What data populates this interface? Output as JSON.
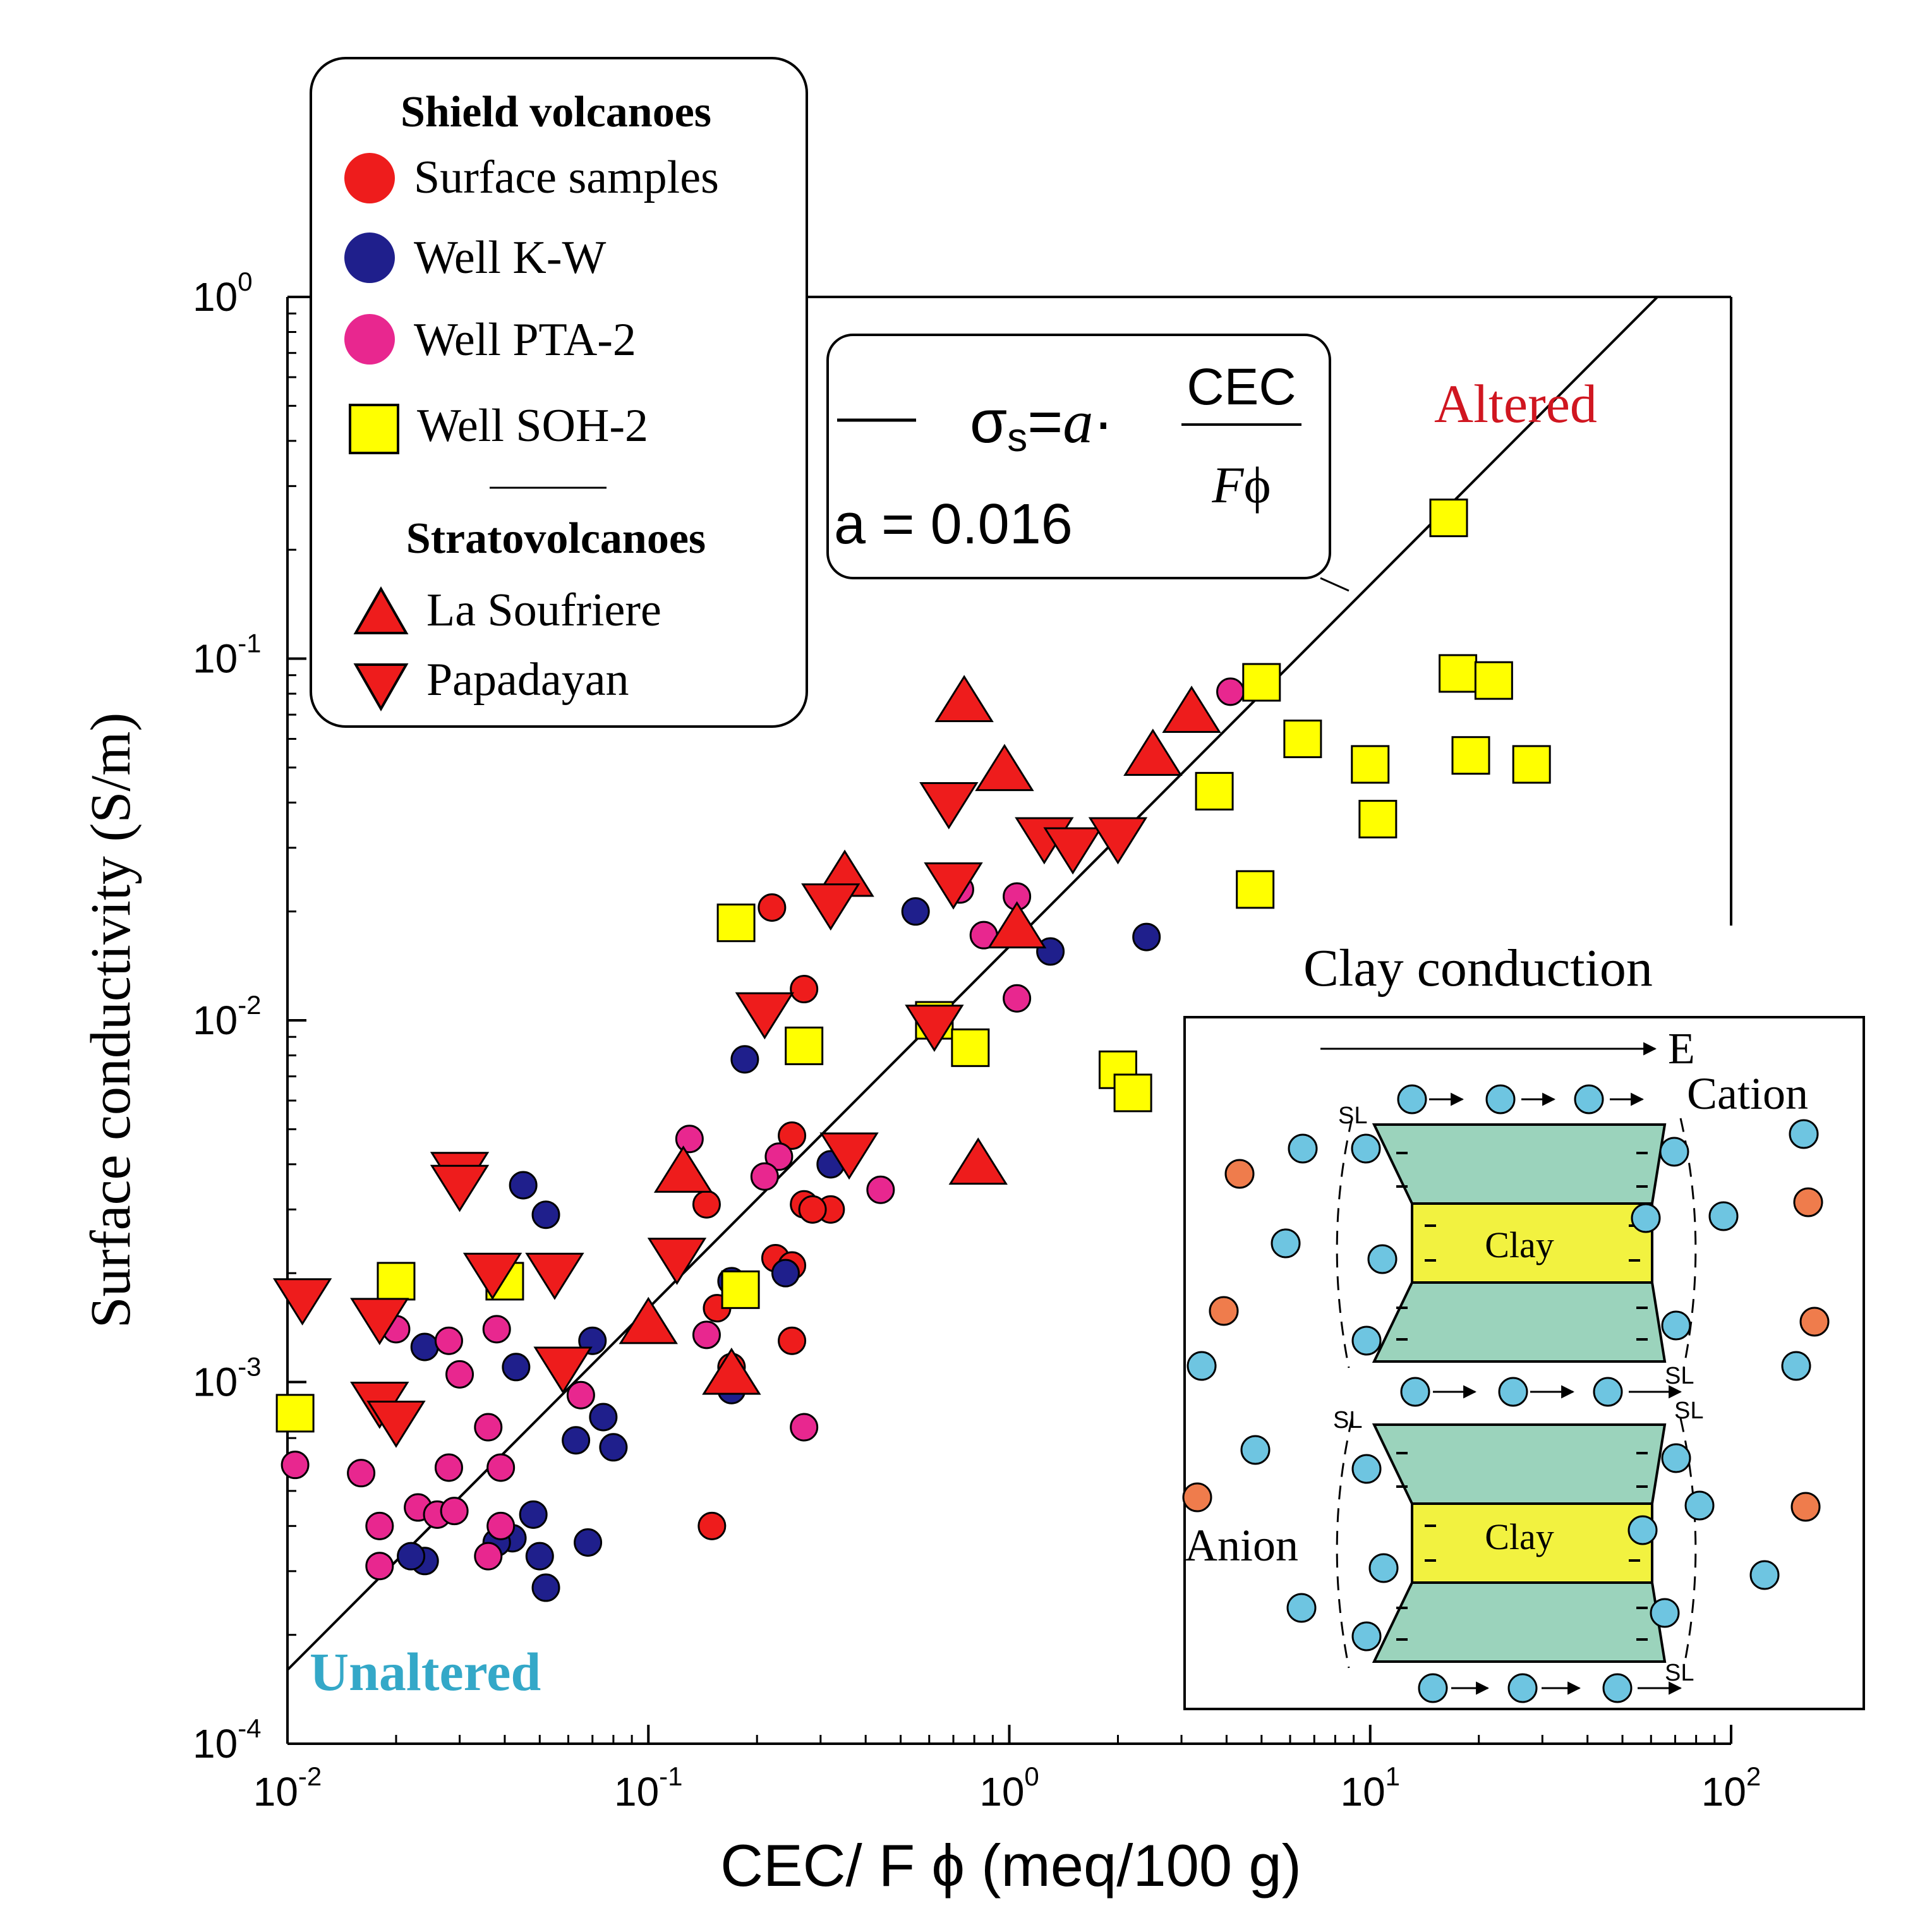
{
  "chart_data": {
    "type": "scatter",
    "title": "",
    "xlabel": "CEC/ F ϕ (meq/100 g)",
    "ylabel": "Surface conductivity (S/m)",
    "x_scale": "log",
    "y_scale": "log",
    "xlim": [
      0.01,
      100
    ],
    "ylim": [
      0.0001,
      1
    ],
    "x_ticks": [
      {
        "value": 0.01,
        "base": "10",
        "exp": "-2"
      },
      {
        "value": 0.1,
        "base": "10",
        "exp": "-1"
      },
      {
        "value": 1,
        "base": "10",
        "exp": "0"
      },
      {
        "value": 10,
        "base": "10",
        "exp": "1"
      },
      {
        "value": 100,
        "base": "10",
        "exp": "2"
      }
    ],
    "y_ticks": [
      {
        "value": 0.0001,
        "base": "10",
        "exp": "-4"
      },
      {
        "value": 0.001,
        "base": "10",
        "exp": "-3"
      },
      {
        "value": 0.01,
        "base": "10",
        "exp": "-2"
      },
      {
        "value": 0.1,
        "base": "10",
        "exp": "-1"
      },
      {
        "value": 1,
        "base": "10",
        "exp": "0"
      }
    ],
    "fit": {
      "a": 0.016,
      "equation": "σs = a · CEC / Fϕ",
      "a_label": "a = 0.016"
    },
    "legend": {
      "position": "top-left",
      "group1_title": "Shield volcanoes",
      "group2_title": "Stratovolcanoes"
    },
    "annotations": {
      "altered": "Altered",
      "unaltered": "Unaltered"
    },
    "series": [
      {
        "name": "Surface samples",
        "marker": "circle",
        "color": "#ee1c1c",
        "points": [
          [
            0.22,
            0.0205
          ],
          [
            0.27,
            0.0122
          ],
          [
            0.25,
            0.0048
          ],
          [
            0.225,
            0.0022
          ],
          [
            0.27,
            0.0031
          ],
          [
            0.25,
            0.0021
          ],
          [
            0.145,
            0.0031
          ],
          [
            0.155,
            0.0016
          ],
          [
            0.17,
            0.0011
          ],
          [
            0.25,
            0.0013
          ],
          [
            0.15,
            0.0004
          ],
          [
            0.32,
            0.003
          ],
          [
            0.285,
            0.003
          ]
        ]
      },
      {
        "name": "Well K-W",
        "marker": "circle",
        "color": "#1f1f8c",
        "points": [
          [
            0.55,
            0.02
          ],
          [
            1.3,
            0.0155
          ],
          [
            2.4,
            0.017
          ],
          [
            0.32,
            0.004
          ],
          [
            0.185,
            0.0078
          ],
          [
            0.17,
            0.0019
          ],
          [
            0.045,
            0.0035
          ],
          [
            0.052,
            0.0029
          ],
          [
            0.024,
            0.00125
          ],
          [
            0.043,
            0.0011
          ],
          [
            0.07,
            0.0013
          ],
          [
            0.075,
            0.0008
          ],
          [
            0.08,
            0.00066
          ],
          [
            0.063,
            0.00069
          ],
          [
            0.048,
            0.00043
          ],
          [
            0.042,
            0.00037
          ],
          [
            0.05,
            0.00033
          ],
          [
            0.052,
            0.00027
          ],
          [
            0.038,
            0.00036
          ],
          [
            0.024,
            0.00032
          ],
          [
            0.022,
            0.00033
          ],
          [
            0.068,
            0.00036
          ],
          [
            0.24,
            0.002
          ],
          [
            0.17,
            0.00095
          ]
        ]
      },
      {
        "name": "Well PTA-2",
        "marker": "circle",
        "color": "#e8278f",
        "points": [
          [
            4.1,
            0.081
          ],
          [
            0.73,
            0.023
          ],
          [
            1.05,
            0.022
          ],
          [
            0.85,
            0.0172
          ],
          [
            1.05,
            0.0115
          ],
          [
            0.13,
            0.0047
          ],
          [
            0.23,
            0.0042
          ],
          [
            0.21,
            0.0037
          ],
          [
            0.44,
            0.0034
          ],
          [
            0.02,
            0.0014
          ],
          [
            0.028,
            0.0013
          ],
          [
            0.038,
            0.0014
          ],
          [
            0.03,
            0.00105
          ],
          [
            0.065,
            0.00092
          ],
          [
            0.036,
            0.00075
          ],
          [
            0.028,
            0.00058
          ],
          [
            0.039,
            0.00058
          ],
          [
            0.016,
            0.00056
          ],
          [
            0.0105,
            0.00059
          ],
          [
            0.018,
            0.0004
          ],
          [
            0.023,
            0.00045
          ],
          [
            0.026,
            0.00043
          ],
          [
            0.029,
            0.00044
          ],
          [
            0.039,
            0.0004
          ],
          [
            0.036,
            0.00033
          ],
          [
            0.018,
            0.00031
          ],
          [
            0.27,
            0.00075
          ],
          [
            0.145,
            0.00135
          ]
        ]
      },
      {
        "name": "Well SOH-2",
        "marker": "square",
        "color": "#ffff00",
        "points": [
          [
            16.5,
            0.245
          ],
          [
            5.0,
            0.086
          ],
          [
            6.5,
            0.06
          ],
          [
            3.7,
            0.043
          ],
          [
            10.0,
            0.051
          ],
          [
            10.5,
            0.036
          ],
          [
            4.8,
            0.023
          ],
          [
            17.5,
            0.091
          ],
          [
            22.0,
            0.087
          ],
          [
            19.0,
            0.054
          ],
          [
            28.0,
            0.051
          ],
          [
            2.0,
            0.0073
          ],
          [
            2.2,
            0.0063
          ],
          [
            0.175,
            0.0186
          ],
          [
            0.27,
            0.0085
          ],
          [
            0.62,
            0.01
          ],
          [
            0.78,
            0.0084
          ],
          [
            0.02,
            0.0019
          ],
          [
            0.04,
            0.0019
          ],
          [
            0.18,
            0.0018
          ],
          [
            0.0105,
            0.00082
          ]
        ]
      },
      {
        "name": "La Soufriere",
        "marker": "triangle-up",
        "color": "#ee1c1c",
        "points": [
          [
            0.75,
            0.076
          ],
          [
            0.97,
            0.049
          ],
          [
            3.2,
            0.071
          ],
          [
            2.5,
            0.054
          ],
          [
            0.35,
            0.025
          ],
          [
            1.05,
            0.018
          ],
          [
            0.125,
            0.0038
          ],
          [
            0.82,
            0.004
          ],
          [
            0.1,
            0.00145
          ],
          [
            0.17,
            0.00105
          ]
        ]
      },
      {
        "name": "Papadayan",
        "marker": "triangle-down",
        "color": "#ee1c1c",
        "points": [
          [
            0.68,
            0.04
          ],
          [
            0.7,
            0.024
          ],
          [
            1.25,
            0.032
          ],
          [
            1.5,
            0.03
          ],
          [
            2.0,
            0.032
          ],
          [
            0.32,
            0.021
          ],
          [
            0.21,
            0.0105
          ],
          [
            0.62,
            0.0097
          ],
          [
            0.36,
            0.0043
          ],
          [
            0.03,
            0.0038
          ],
          [
            0.03,
            0.0035
          ],
          [
            0.037,
            0.002
          ],
          [
            0.055,
            0.002
          ],
          [
            0.12,
            0.0022
          ],
          [
            0.011,
            0.0017
          ],
          [
            0.018,
            0.0015
          ],
          [
            0.058,
            0.0011
          ],
          [
            0.018,
            0.00088
          ],
          [
            0.02,
            0.00078
          ]
        ]
      }
    ],
    "inset": {
      "title": "Clay conduction",
      "field_label": "E",
      "cation_label": "Cation",
      "anion_label": "Anion",
      "clay_label": "Clay",
      "stern_label": "SL",
      "cation_color": "#6ec5e1",
      "anion_color": "#ef7c4c",
      "clay_color": "#f2f240",
      "layer_color": "#9bd3bc"
    }
  }
}
